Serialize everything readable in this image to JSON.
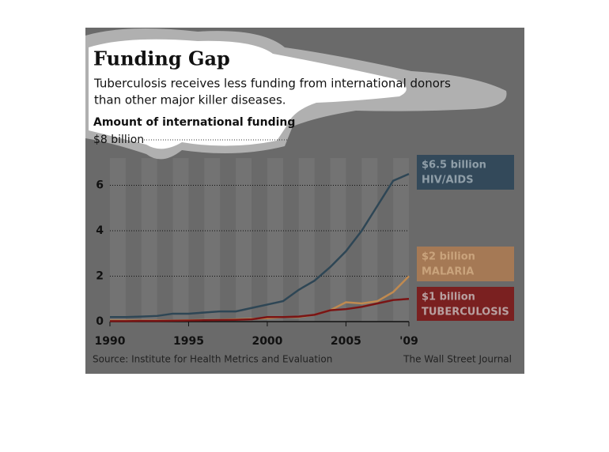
{
  "chart_data": {
    "type": "line",
    "title": "Funding Gap",
    "subtitle": [
      "Tuberculosis receives less funding from international donors",
      "than other major killer diseases."
    ],
    "y_label": "Amount of international funding",
    "source": "Source: Institute for Health Metrics and Evaluation",
    "credit": "The Wall Street Journal",
    "x": [
      1990,
      1991,
      1992,
      1993,
      1994,
      1995,
      1996,
      1997,
      1998,
      1999,
      2000,
      2001,
      2002,
      2003,
      2004,
      2005,
      2006,
      2007,
      2008,
      2009
    ],
    "xlim": [
      1990,
      2009
    ],
    "xticks": [
      1990,
      1995,
      2000,
      2005,
      {
        "value": 2009,
        "label": "'09"
      }
    ],
    "ylim": [
      0,
      8
    ],
    "yticks": [
      0,
      2,
      4,
      6,
      {
        "value": 8,
        "label": "$8 billion"
      }
    ],
    "grid": true,
    "series": [
      {
        "name": "HIV/AIDS",
        "end_label": "$6.5 billion",
        "color": "#2e4655",
        "box_color": "#33495a",
        "text_color": "#8f9ea8",
        "values": [
          0.2,
          0.2,
          0.22,
          0.25,
          0.35,
          0.35,
          0.4,
          0.45,
          0.45,
          0.6,
          0.75,
          0.9,
          1.4,
          1.8,
          2.4,
          3.1,
          4.0,
          5.1,
          6.2,
          6.5
        ]
      },
      {
        "name": "MALARIA",
        "end_label": "$2 billion",
        "color": "#c08a50",
        "box_color": "#a57955",
        "text_color": "#c9a37c",
        "values": [
          0.05,
          0.05,
          0.05,
          0.05,
          0.05,
          0.06,
          0.07,
          0.08,
          0.1,
          0.12,
          0.15,
          0.2,
          0.2,
          0.3,
          0.5,
          0.85,
          0.8,
          0.9,
          1.3,
          2.0
        ]
      },
      {
        "name": "TUBERCULOSIS",
        "end_label": "$1 billion",
        "color": "#7a1414",
        "box_color": "#7a2020",
        "text_color": "#b8a0a0",
        "values": [
          0.02,
          0.02,
          0.03,
          0.03,
          0.04,
          0.05,
          0.06,
          0.07,
          0.08,
          0.1,
          0.2,
          0.2,
          0.22,
          0.3,
          0.5,
          0.55,
          0.65,
          0.8,
          0.95,
          1.0
        ]
      }
    ]
  }
}
